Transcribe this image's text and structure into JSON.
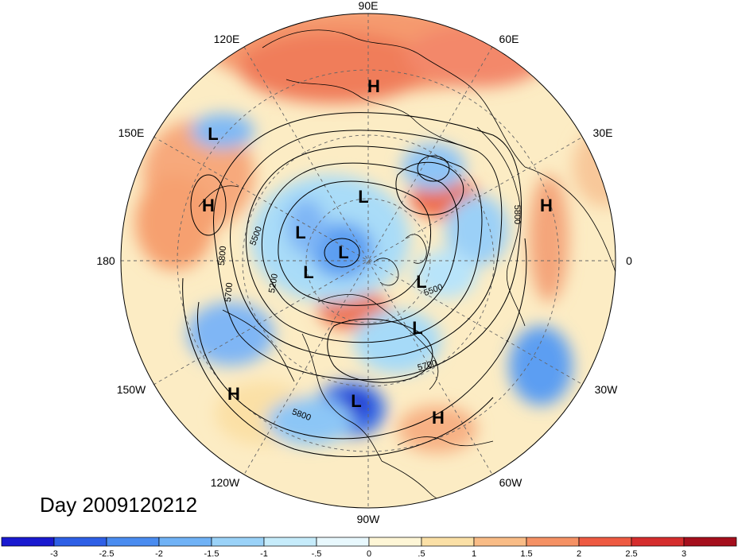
{
  "title": "Day 2009120212",
  "longitude_labels": [
    "90E",
    "120E",
    "60E",
    "150E",
    "30E",
    "180",
    "0",
    "150W",
    "30W",
    "120W",
    "60W",
    "90W"
  ],
  "pressure_centers": [
    {
      "type": "H",
      "label": "H"
    },
    {
      "type": "L",
      "label": "L"
    },
    {
      "type": "H",
      "label": "H"
    },
    {
      "type": "L",
      "label": "L"
    },
    {
      "type": "H",
      "label": "H"
    },
    {
      "type": "L",
      "label": "L"
    },
    {
      "type": "L",
      "label": "L"
    },
    {
      "type": "L",
      "label": "L"
    },
    {
      "type": "L",
      "label": "L"
    },
    {
      "type": "L",
      "label": "L"
    },
    {
      "type": "H",
      "label": "H"
    },
    {
      "type": "L",
      "label": "L"
    },
    {
      "type": "H",
      "label": "H"
    }
  ],
  "contour_labels": [
    "5500",
    "5800",
    "5200",
    "5700",
    "5800",
    "5500",
    "5700",
    "5800"
  ],
  "colorbar": {
    "colors": [
      "#1a1ad0",
      "#2e5fe6",
      "#4a8cf0",
      "#70b2f6",
      "#9ad2f8",
      "#c6ecfb",
      "#e8f8fd",
      "#fef6d6",
      "#fbe0a6",
      "#f9bc86",
      "#f59164",
      "#ee5a42",
      "#d52d2d",
      "#a50f1d"
    ],
    "tick_labels": [
      "-3",
      "-2.5",
      "-2",
      "-1.5",
      "-1",
      "-.5",
      "0",
      ".5",
      "1",
      "1.5",
      "2",
      "2.5",
      "3"
    ]
  }
}
